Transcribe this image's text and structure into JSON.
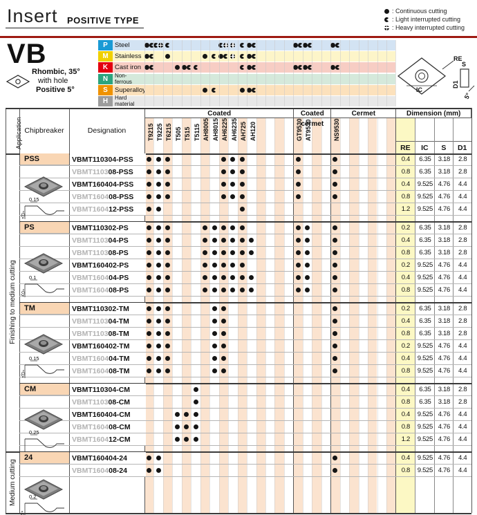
{
  "header": {
    "title": "Insert",
    "subtitle": "POSITIVE TYPE"
  },
  "legend": [
    {
      "sym": "c",
      "label": ": Continuous cutting"
    },
    {
      "sym": "l",
      "label": ": Light interrupted cutting"
    },
    {
      "sym": "h",
      "label": ": Heavy interrupted cutting"
    }
  ],
  "product": {
    "code": "VB",
    "desc_line1": "Rhombic, 35°",
    "desc_line2": "with hole",
    "desc_line3": "Positive 5°"
  },
  "insert_diagram": {
    "re": "RE",
    "s": "S",
    "d1": "D1",
    "ic": "IC",
    "angle": "5°"
  },
  "colors": {
    "stripe": "#fbe3cf",
    "re_col": "#fcf8c4",
    "chip_bg": "#f9d6b4",
    "red_rule": "#9e1a12",
    "p_badge": "#1a9ad5",
    "p_row": "#d3e3f3",
    "m_badge": "#f0d000",
    "m_row": "#fdf5c9",
    "k_badge": "#e3000f",
    "k_row": "#f7cdc4",
    "n_badge": "#2ba47e",
    "n_row": "#d5e9db",
    "s_badge": "#ef9200",
    "s_row": "#fce1bc",
    "h_badge": "#9c9c9c",
    "h_row": "#e8e8e8"
  },
  "grade_columns": [
    "T9215",
    "T9225",
    "T6215",
    "T505",
    "T515",
    "T5115",
    "AH8005",
    "AH8015",
    "AH6225",
    "AH6235",
    "AH725",
    "AH120",
    "GT9530",
    "AT9530",
    "NS9530"
  ],
  "grade_groups": [
    {
      "label": "Coated",
      "span_cols": 16
    },
    {
      "label": "Coated cermet",
      "span_cols": 4
    },
    {
      "label": "Cermet",
      "span_cols": 7
    }
  ],
  "materials": [
    {
      "code": "P",
      "name": "Steel",
      "cells": {
        "T9215": "cl",
        "T9225": "lh",
        "T6215": "l",
        "AH6225": "lh",
        "AH6235": "h",
        "AH725": "l",
        "AH120": "cl",
        "GT9530": "cl",
        "AT9530": "cl",
        "NS9530": "cl"
      }
    },
    {
      "code": "M",
      "name": "Stainless",
      "cells": {
        "T9215": "cl",
        "T6215": "c",
        "AH8005": "c",
        "AH8015": "l",
        "AH6225": "cl",
        "AH6235": "h",
        "AH725": "l",
        "AH120": "cl"
      }
    },
    {
      "code": "K",
      "name": "Cast iron",
      "cells": {
        "T9215": "cl",
        "T505": "c",
        "T515": "cl",
        "T5115": "l",
        "AH725": "l",
        "AH120": "cl",
        "GT9530": "cl",
        "AT9530": "cl",
        "NS9530": "cl"
      }
    },
    {
      "code": "N",
      "name": "Non-\nferrous",
      "cells": {}
    },
    {
      "code": "S",
      "name": "Superalloy",
      "cells": {
        "AH8005": "c",
        "AH8015": "l",
        "AH725": "c",
        "AH120": "cl"
      }
    },
    {
      "code": "H",
      "name": "Hard\nmaterial",
      "cells": {}
    }
  ],
  "table_headers": {
    "application": "Application",
    "chipbreaker": "Chipbreaker",
    "designation": "Designation",
    "dimension": "Dimension (mm)",
    "dim_cols": [
      "RE",
      "IC",
      "S",
      "D1"
    ]
  },
  "applications": [
    {
      "label": "Finishing to medium cutting",
      "block_span": [
        0,
        3
      ]
    },
    {
      "label": "Medium cutting",
      "block_span": [
        4,
        4
      ]
    }
  ],
  "blocks": [
    {
      "chipbreaker": "PSS",
      "diagram": {
        "width": "0.15",
        "angle": "20°"
      },
      "rows": [
        {
          "gray": "",
          "black": "VBMT110304-PSS",
          "grades": [
            "T9215",
            "T9225",
            "T6215",
            "AH6225",
            "AH6235",
            "AH725",
            "GT9530",
            "NS9530"
          ],
          "dim": [
            "0.4",
            "6.35",
            "3.18",
            "2.8"
          ]
        },
        {
          "gray": "VBMT1103",
          "black": "08-PSS",
          "grades": [
            "T9215",
            "T9225",
            "T6215",
            "AH6225",
            "AH6235",
            "AH725",
            "GT9530",
            "NS9530"
          ],
          "dim": [
            "0.8",
            "6.35",
            "3.18",
            "2.8"
          ]
        },
        {
          "gray": "",
          "black": "VBMT160404-PSS",
          "grades": [
            "T9215",
            "T9225",
            "T6215",
            "AH6225",
            "AH6235",
            "AH725",
            "GT9530",
            "NS9530"
          ],
          "dim": [
            "0.4",
            "9.525",
            "4.76",
            "4.4"
          ]
        },
        {
          "gray": "VBMT1604",
          "black": "08-PSS",
          "grades": [
            "T9215",
            "T9225",
            "T6215",
            "AH6225",
            "AH6235",
            "AH725",
            "GT9530",
            "NS9530"
          ],
          "dim": [
            "0.8",
            "9.525",
            "4.76",
            "4.4"
          ]
        },
        {
          "gray": "VBMT1604",
          "black": "12-PSS",
          "grades": [
            "T9215",
            "T9225",
            "AH725"
          ],
          "dim": [
            "1.2",
            "9.525",
            "4.76",
            "4.4"
          ]
        }
      ]
    },
    {
      "chipbreaker": "PS",
      "diagram": {
        "width": "0.1",
        "angle": "10°"
      },
      "rows": [
        {
          "gray": "",
          "black": "VBMT110302-PS",
          "grades": [
            "T9215",
            "T9225",
            "T6215",
            "AH8005",
            "AH8015",
            "AH6225",
            "AH6235",
            "AH725",
            "GT9530",
            "AT9530",
            "NS9530"
          ],
          "dim": [
            "0.2",
            "6.35",
            "3.18",
            "2.8"
          ]
        },
        {
          "gray": "VBMT1103",
          "black": "04-PS",
          "grades": [
            "T9215",
            "T9225",
            "T6215",
            "AH8005",
            "AH8015",
            "AH6225",
            "AH6235",
            "AH725",
            "AH120",
            "GT9530",
            "AT9530",
            "NS9530"
          ],
          "dim": [
            "0.4",
            "6.35",
            "3.18",
            "2.8"
          ]
        },
        {
          "gray": "VBMT1103",
          "black": "08-PS",
          "grades": [
            "T9215",
            "T9225",
            "T6215",
            "AH8005",
            "AH8015",
            "AH6225",
            "AH6235",
            "AH725",
            "AH120",
            "GT9530",
            "AT9530",
            "NS9530"
          ],
          "dim": [
            "0.8",
            "6.35",
            "3.18",
            "2.8"
          ]
        },
        {
          "gray": "",
          "black": "VBMT160402-PS",
          "grades": [
            "T9215",
            "T9225",
            "T6215",
            "AH8005",
            "AH8015",
            "AH6225",
            "AH6235",
            "AH725",
            "GT9530",
            "AT9530",
            "NS9530"
          ],
          "dim": [
            "0.2",
            "9.525",
            "4.76",
            "4.4"
          ]
        },
        {
          "gray": "VBMT1604",
          "black": "04-PS",
          "grades": [
            "T9215",
            "T9225",
            "T6215",
            "AH8005",
            "AH8015",
            "AH6225",
            "AH6235",
            "AH725",
            "AH120",
            "GT9530",
            "AT9530",
            "NS9530"
          ],
          "dim": [
            "0.4",
            "9.525",
            "4.76",
            "4.4"
          ]
        },
        {
          "gray": "VBMT1604",
          "black": "08-PS",
          "grades": [
            "T9215",
            "T9225",
            "T6215",
            "AH8005",
            "AH8015",
            "AH6225",
            "AH6235",
            "AH725",
            "AH120",
            "GT9530",
            "AT9530",
            "NS9530"
          ],
          "dim": [
            "0.8",
            "9.525",
            "4.76",
            "4.4"
          ]
        }
      ]
    },
    {
      "chipbreaker": "TM",
      "diagram": {
        "width": "0.15",
        "angle": "20°"
      },
      "rows": [
        {
          "gray": "",
          "black": "VBMT110302-TM",
          "grades": [
            "T9215",
            "T9225",
            "T6215",
            "AH8015",
            "AH6225",
            "NS9530"
          ],
          "dim": [
            "0.2",
            "6.35",
            "3.18",
            "2.8"
          ]
        },
        {
          "gray": "VBMT1103",
          "black": "04-TM",
          "grades": [
            "T9215",
            "T9225",
            "T6215",
            "AH8015",
            "AH6225",
            "NS9530"
          ],
          "dim": [
            "0.4",
            "6.35",
            "3.18",
            "2.8"
          ]
        },
        {
          "gray": "VBMT1103",
          "black": "08-TM",
          "grades": [
            "T9215",
            "T9225",
            "T6215",
            "AH8015",
            "AH6225",
            "NS9530"
          ],
          "dim": [
            "0.8",
            "6.35",
            "3.18",
            "2.8"
          ]
        },
        {
          "gray": "",
          "black": "VBMT160402-TM",
          "grades": [
            "T9215",
            "T9225",
            "T6215",
            "AH8015",
            "AH6225",
            "NS9530"
          ],
          "dim": [
            "0.2",
            "9.525",
            "4.76",
            "4.4"
          ]
        },
        {
          "gray": "VBMT1604",
          "black": "04-TM",
          "grades": [
            "T9215",
            "T9225",
            "T6215",
            "AH8015",
            "AH6225",
            "NS9530"
          ],
          "dim": [
            "0.4",
            "9.525",
            "4.76",
            "4.4"
          ]
        },
        {
          "gray": "VBMT1604",
          "black": "08-TM",
          "grades": [
            "T9215",
            "T9225",
            "T6215",
            "AH8015",
            "AH6225",
            "NS9530"
          ],
          "dim": [
            "0.8",
            "9.525",
            "4.76",
            "4.4"
          ]
        }
      ]
    },
    {
      "chipbreaker": "CM",
      "diagram": {
        "width": "0.25",
        "angle": ""
      },
      "rows": [
        {
          "gray": "",
          "black": "VBMT110304-CM",
          "grades": [
            "T5115"
          ],
          "dim": [
            "0.4",
            "6.35",
            "3.18",
            "2.8"
          ]
        },
        {
          "gray": "VBMT1103",
          "black": "08-CM",
          "grades": [
            "T5115"
          ],
          "dim": [
            "0.8",
            "6.35",
            "3.18",
            "2.8"
          ]
        },
        {
          "gray": "",
          "black": "VBMT160404-CM",
          "grades": [
            "T505",
            "T515",
            "T5115"
          ],
          "dim": [
            "0.4",
            "9.525",
            "4.76",
            "4.4"
          ]
        },
        {
          "gray": "VBMT1604",
          "black": "08-CM",
          "grades": [
            "T505",
            "T515",
            "T5115"
          ],
          "dim": [
            "0.8",
            "9.525",
            "4.76",
            "4.4"
          ]
        },
        {
          "gray": "VBMT1604",
          "black": "12-CM",
          "grades": [
            "T505",
            "T515",
            "T5115"
          ],
          "dim": [
            "1.2",
            "9.525",
            "4.76",
            "4.4"
          ]
        }
      ]
    },
    {
      "chipbreaker": "24",
      "diagram": {
        "width": "0.2",
        "angle": "6°"
      },
      "rows": [
        {
          "gray": "",
          "black": "VBMT160404-24",
          "grades": [
            "T9215",
            "T9225",
            "NS9530"
          ],
          "dim": [
            "0.4",
            "9.525",
            "4.76",
            "4.4"
          ]
        },
        {
          "gray": "VBMT1604",
          "black": "08-24",
          "grades": [
            "T9215",
            "T9225",
            "NS9530"
          ],
          "dim": [
            "0.8",
            "9.525",
            "4.76",
            "4.4"
          ]
        }
      ]
    }
  ]
}
